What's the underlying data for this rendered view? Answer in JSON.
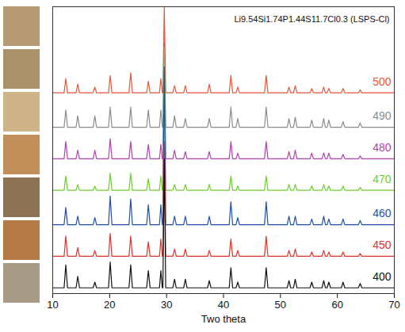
{
  "chart_data": {
    "type": "line",
    "title": "Li9.54Si1.74P1.44S11.7Cl0.3 (LSPS-Cl)",
    "x_label": "Two theta",
    "xlim": [
      10,
      70
    ],
    "xticks": [
      10,
      20,
      30,
      40,
      50,
      60,
      70
    ],
    "ylim": [
      0,
      100
    ],
    "tick_labels": "x",
    "grid": false,
    "x": [
      10,
      12.0,
      12.3,
      12.6,
      14.1,
      14.4,
      14.7,
      17.1,
      17.4,
      17.7,
      19.8,
      20.1,
      20.4,
      23.4,
      23.7,
      24.0,
      26.5,
      26.8,
      27.1,
      28.75,
      29.0,
      29.25,
      29.35,
      29.6,
      29.85,
      31.1,
      31.4,
      31.7,
      33.0,
      33.3,
      33.6,
      37.2,
      37.5,
      37.8,
      41.0,
      41.3,
      41.6,
      42.2,
      42.5,
      42.8,
      47.2,
      47.5,
      47.8,
      51.2,
      51.5,
      51.8,
      52.3,
      52.6,
      52.9,
      55.2,
      55.5,
      55.8,
      57.3,
      57.6,
      57.9,
      58.2,
      58.5,
      58.8,
      60.7,
      61.0,
      61.3,
      63.7,
      64.0,
      64.3,
      70
    ],
    "series": [
      {
        "name": "500",
        "color": "#e8553a",
        "values": [
          70,
          70,
          75,
          70,
          70,
          73,
          70,
          70,
          72,
          70,
          70,
          76,
          70,
          70,
          77,
          70,
          70,
          74,
          70,
          70,
          75,
          70,
          70,
          100,
          70,
          70,
          72.5,
          70,
          70,
          72.5,
          70,
          70,
          73,
          70,
          70,
          76,
          70,
          70,
          72,
          70,
          70,
          76,
          70,
          70,
          72,
          70,
          70,
          72.5,
          70,
          70,
          71.5,
          70,
          70,
          72,
          70,
          70,
          71.5,
          70,
          70,
          71.5,
          70,
          70,
          71,
          70,
          70
        ]
      },
      {
        "name": "490",
        "color": "#8c8c8c",
        "values": [
          58,
          58,
          64,
          58,
          58,
          62,
          58,
          58,
          62,
          58,
          58,
          65,
          58,
          58,
          65,
          58,
          58,
          64,
          58,
          58,
          64,
          58,
          58,
          88,
          58,
          58,
          62,
          58,
          58,
          61,
          58,
          58,
          61,
          58,
          58,
          65,
          58,
          58,
          61,
          58,
          58,
          65,
          58,
          58,
          61,
          58,
          58,
          61.5,
          58,
          58,
          60.5,
          58,
          58,
          61,
          58,
          58,
          60.5,
          58,
          58,
          60,
          58,
          58,
          59.5,
          58,
          58
        ]
      },
      {
        "name": "480",
        "color": "#b040b0",
        "values": [
          47,
          47,
          53,
          47,
          47,
          50,
          47,
          47,
          50,
          47,
          47,
          54,
          47,
          47,
          53,
          47,
          47,
          52,
          47,
          47,
          52,
          47,
          47,
          87,
          47,
          47,
          50,
          47,
          47,
          49.5,
          47,
          47,
          49.5,
          47,
          47,
          53,
          47,
          47,
          49,
          47,
          47,
          53,
          47,
          47,
          49.5,
          47,
          47,
          50,
          47,
          47,
          49,
          47,
          47,
          49,
          47,
          47,
          49,
          47,
          47,
          48.5,
          47,
          47,
          48,
          47,
          47
        ]
      },
      {
        "name": "470",
        "color": "#6ccf2a",
        "values": [
          36,
          36,
          41,
          36,
          36,
          38,
          36,
          36,
          37.5,
          36,
          36,
          42,
          36,
          36,
          42,
          36,
          36,
          40,
          36,
          36,
          41,
          36,
          36,
          86,
          36,
          36,
          38,
          36,
          36,
          38,
          36,
          36,
          38,
          36,
          36,
          41,
          36,
          36,
          37.5,
          36,
          36,
          41,
          36,
          36,
          38,
          36,
          36,
          38,
          36,
          36,
          37.5,
          36,
          36,
          38,
          36,
          36,
          37.5,
          36,
          36,
          37.5,
          36,
          36,
          37,
          36,
          36
        ]
      },
      {
        "name": "460",
        "color": "#1f4fa8",
        "values": [
          24,
          24,
          30,
          24,
          24,
          27,
          24,
          24,
          26.5,
          24,
          24,
          34,
          24,
          24,
          33,
          24,
          24,
          31,
          24,
          24,
          31,
          24,
          24,
          79,
          24,
          24,
          27,
          24,
          24,
          27,
          24,
          24,
          27,
          24,
          24,
          32,
          24,
          24,
          26.5,
          24,
          24,
          32,
          24,
          24,
          27,
          24,
          24,
          27,
          24,
          24,
          26,
          24,
          24,
          27,
          24,
          24,
          26,
          24,
          24,
          26,
          24,
          24,
          25.5,
          24,
          24
        ]
      },
      {
        "name": "450",
        "color": "#e0302a",
        "values": [
          13,
          13,
          20,
          13,
          13,
          16,
          13,
          13,
          15,
          13,
          13,
          21,
          13,
          13,
          20,
          13,
          13,
          18,
          13,
          13,
          19,
          13,
          13,
          53,
          13,
          13,
          15.5,
          13,
          13,
          15.5,
          13,
          13,
          15,
          13,
          13,
          19,
          13,
          13,
          15,
          13,
          13,
          20,
          13,
          13,
          15,
          13,
          13,
          15.5,
          13,
          13,
          14.5,
          13,
          13,
          15,
          13,
          13,
          14.5,
          13,
          13,
          14.5,
          13,
          13,
          14,
          13,
          13
        ]
      },
      {
        "name": "400",
        "color": "#111111",
        "values": [
          2,
          2,
          10,
          2,
          2,
          6,
          2,
          2,
          4,
          2,
          2,
          11,
          2,
          2,
          10,
          2,
          2,
          8,
          2,
          2,
          8,
          2,
          2,
          47,
          2,
          2,
          5,
          2,
          2,
          5,
          2,
          2,
          4.5,
          2,
          2,
          9,
          2,
          2,
          4,
          2,
          2,
          9,
          2,
          2,
          4.5,
          2,
          2,
          5,
          2,
          2,
          4,
          2,
          2,
          4.5,
          2,
          2,
          4,
          2,
          2,
          4,
          2,
          2,
          3.5,
          2,
          2
        ]
      }
    ]
  }
}
